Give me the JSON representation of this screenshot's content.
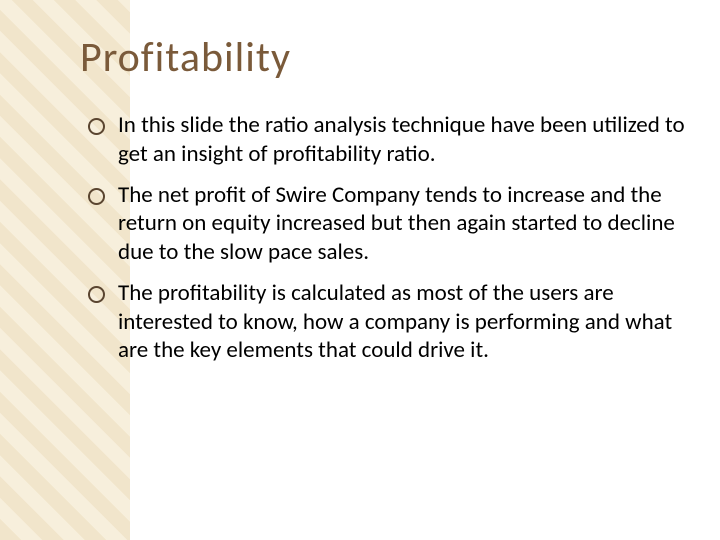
{
  "slide": {
    "title": "Profitability",
    "title_color": "#7a5a3a",
    "title_fontsize": 42,
    "body_fontsize": 23,
    "body_color": "#000000",
    "bullet_border_color": "#5a4530",
    "bullets": [
      "In this slide the ratio analysis technique have been utilized to get an insight of profitability ratio.",
      "The net profit of Swire Company tends to increase and the return on equity increased but then again started to decline due to the slow pace sales.",
      "The profitability is calculated as most of the users are interested to know, how a company is performing and what are the key elements that could drive it."
    ]
  },
  "background": {
    "pattern_colors": [
      "#e8d4a8",
      "#f2e4c4"
    ],
    "pattern_width": 130
  }
}
